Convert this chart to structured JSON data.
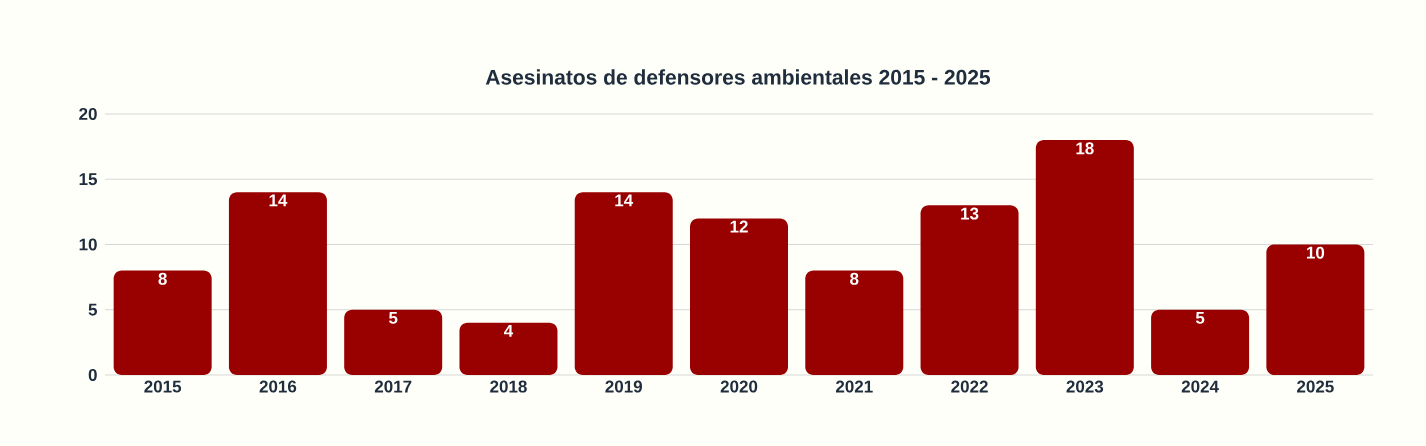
{
  "chart_data": {
    "type": "bar",
    "title": "Asesinatos de defensores ambientales 2015 - 2025",
    "categories": [
      "2015",
      "2016",
      "2017",
      "2018",
      "2019",
      "2020",
      "2021",
      "2022",
      "2023",
      "2024",
      "2025"
    ],
    "values": [
      8,
      14,
      5,
      4,
      14,
      12,
      8,
      13,
      18,
      5,
      10
    ],
    "color": "#990000",
    "ylim": [
      0,
      20
    ],
    "yticks": [
      0,
      5,
      10,
      15,
      20
    ],
    "grid": "y",
    "data_labels": true
  }
}
